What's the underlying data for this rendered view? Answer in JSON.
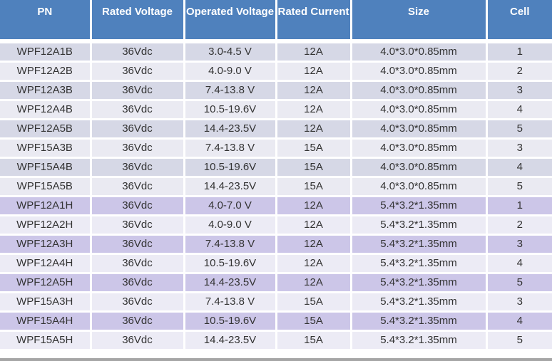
{
  "colors": {
    "header_bg": "#4F81BD",
    "header_text": "#FFFFFF",
    "stripe_b_odd": "#D6D8E6",
    "stripe_b_even": "#EAEAF2",
    "stripe_h_odd": "#CCC6E8",
    "stripe_h_even": "#ECEBF5",
    "body_text": "#333333",
    "divider": "#FFFFFF",
    "bottom_strip": "#A6A6A6"
  },
  "chart_data": {
    "type": "table",
    "columns": [
      "PN",
      "Rated Voltage",
      "Operated Voltage",
      "Rated Current",
      "Size",
      "Cell"
    ],
    "rows": [
      [
        "WPF12A1B",
        "36Vdc",
        "3.0-4.5 V",
        "12A",
        "4.0*3.0*0.85mm",
        "1"
      ],
      [
        "WPF12A2B",
        "36Vdc",
        "4.0-9.0 V",
        "12A",
        "4.0*3.0*0.85mm",
        "2"
      ],
      [
        "WPF12A3B",
        "36Vdc",
        "7.4-13.8 V",
        "12A",
        "4.0*3.0*0.85mm",
        "3"
      ],
      [
        "WPF12A4B",
        "36Vdc",
        "10.5-19.6V",
        "12A",
        "4.0*3.0*0.85mm",
        "4"
      ],
      [
        "WPF12A5B",
        "36Vdc",
        "14.4-23.5V",
        "12A",
        "4.0*3.0*0.85mm",
        "5"
      ],
      [
        "WPF15A3B",
        "36Vdc",
        "7.4-13.8 V",
        "15A",
        "4.0*3.0*0.85mm",
        "3"
      ],
      [
        "WPF15A4B",
        "36Vdc",
        "10.5-19.6V",
        "15A",
        "4.0*3.0*0.85mm",
        "4"
      ],
      [
        "WPF15A5B",
        "36Vdc",
        "14.4-23.5V",
        "15A",
        "4.0*3.0*0.85mm",
        "5"
      ],
      [
        "WPF12A1H",
        "36Vdc",
        "4.0-7.0 V",
        "12A",
        "5.4*3.2*1.35mm",
        "1"
      ],
      [
        "WPF12A2H",
        "36Vdc",
        "4.0-9.0 V",
        "12A",
        "5.4*3.2*1.35mm",
        "2"
      ],
      [
        "WPF12A3H",
        "36Vdc",
        "7.4-13.8 V",
        "12A",
        "5.4*3.2*1.35mm",
        "3"
      ],
      [
        "WPF12A4H",
        "36Vdc",
        "10.5-19.6V",
        "12A",
        "5.4*3.2*1.35mm",
        "4"
      ],
      [
        "WPF12A5H",
        "36Vdc",
        "14.4-23.5V",
        "12A",
        "5.4*3.2*1.35mm",
        "5"
      ],
      [
        "WPF15A3H",
        "36Vdc",
        "7.4-13.8 V",
        "15A",
        "5.4*3.2*1.35mm",
        "3"
      ],
      [
        "WPF15A4H",
        "36Vdc",
        "10.5-19.6V",
        "15A",
        "5.4*3.2*1.35mm",
        "4"
      ],
      [
        "WPF15A5H",
        "36Vdc",
        "14.4-23.5V",
        "15A",
        "5.4*3.2*1.35mm",
        "5"
      ]
    ]
  }
}
